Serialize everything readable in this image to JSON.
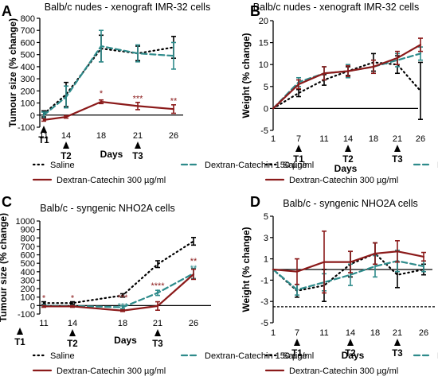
{
  "colors": {
    "saline": "#000000",
    "dex150": "#2e8b8b",
    "dex300": "#8b1a1a"
  },
  "legend": {
    "saline": "Saline",
    "dex150": "Dextran-Catechin 150 µg/ml",
    "dex300": "Dextran-Catechin 300 µg/ml"
  },
  "chart_data": [
    {
      "panel": "A",
      "type": "line",
      "title": "Balb/c nudes - xenograft IMR-32 cells",
      "xlabel": "Days",
      "ylabel": "Tumour size (% change)",
      "x": [
        11,
        14,
        18,
        21,
        26
      ],
      "ylim": [
        -100,
        800
      ],
      "yticks": [
        -100,
        0,
        100,
        200,
        300,
        400,
        500,
        600,
        700,
        800
      ],
      "treatments": [
        {
          "label": "T1",
          "day": 11,
          "x": 11,
          "y": -100
        },
        {
          "label": "T2",
          "day": 14,
          "x": 14,
          "y": -100
        },
        {
          "label": "T3",
          "day": 21,
          "x": 21,
          "y": -100
        }
      ],
      "series": [
        {
          "key": "saline",
          "values": [
            10,
            170,
            550,
            510,
            560
          ],
          "errors": [
            25,
            100,
            110,
            60,
            90
          ]
        },
        {
          "key": "dex150",
          "values": [
            0,
            150,
            570,
            510,
            490
          ],
          "errors": [
            25,
            90,
            130,
            70,
            110
          ]
        },
        {
          "key": "dex300",
          "values": [
            -40,
            -15,
            110,
            75,
            50
          ],
          "errors": [
            10,
            10,
            15,
            30,
            35
          ]
        }
      ],
      "annotations": [
        {
          "text": "*",
          "x": 18,
          "y": 155
        },
        {
          "text": "***",
          "x": 21,
          "y": 115
        },
        {
          "text": "**",
          "x": 26,
          "y": 95
        }
      ]
    },
    {
      "panel": "B",
      "type": "line",
      "title": "Balb/c nudes - xenograft IMR-32 cells",
      "xlabel": "Days",
      "ylabel": "Weight (% change)",
      "x": [
        1,
        7,
        11,
        14,
        18,
        21,
        26
      ],
      "ylim": [
        -5,
        20
      ],
      "yticks": [
        -5,
        0,
        5,
        10,
        15,
        20
      ],
      "treatments": [
        {
          "label": "T1",
          "day": 7,
          "x": 7,
          "y": -5
        },
        {
          "label": "T2",
          "day": 14,
          "x": 14,
          "y": -5
        },
        {
          "label": "T3",
          "day": 21,
          "x": 21,
          "y": -5
        }
      ],
      "series": [
        {
          "key": "saline",
          "values": [
            0,
            3.5,
            6.5,
            8.5,
            10.5,
            10,
            4
          ],
          "errors": [
            0,
            0.8,
            1.2,
            1.0,
            2.0,
            2.0,
            6.5
          ]
        },
        {
          "key": "dex150",
          "values": [
            0,
            6,
            8,
            8.5,
            9.5,
            11,
            12.5
          ],
          "errors": [
            0,
            1.0,
            1.5,
            1.5,
            1.5,
            1.5,
            1.5
          ]
        },
        {
          "key": "dex300",
          "values": [
            0,
            5.5,
            8,
            8.5,
            9.5,
            11.5,
            14.5
          ],
          "errors": [
            0,
            1.0,
            1.5,
            1.2,
            1.5,
            1.5,
            1.5
          ]
        }
      ],
      "annotations": []
    },
    {
      "panel": "C",
      "type": "line",
      "title": "Balb/c - syngenic NHO2A cells",
      "xlabel": "Days",
      "ylabel": "Tumour size (% change)",
      "x": [
        11,
        14,
        18,
        21,
        26
      ],
      "ylim": [
        -100,
        1000
      ],
      "yticks": [
        -100,
        0,
        100,
        200,
        300,
        400,
        500,
        600,
        700,
        800,
        900,
        1000
      ],
      "treatments": [
        {
          "label": "T1",
          "day": 9,
          "x": 9,
          "y": -100
        },
        {
          "label": "T2",
          "day": 14,
          "x": 14,
          "y": -100
        },
        {
          "label": "T3",
          "day": 21,
          "x": 21,
          "y": -100
        }
      ],
      "series": [
        {
          "key": "saline",
          "values": [
            30,
            30,
            120,
            490,
            760
          ],
          "errors": [
            15,
            15,
            20,
            40,
            45
          ]
        },
        {
          "key": "dex150",
          "values": [
            0,
            -5,
            -20,
            150,
            380
          ],
          "errors": [
            10,
            10,
            15,
            30,
            60
          ]
        },
        {
          "key": "dex300",
          "values": [
            -10,
            -10,
            -60,
            -5,
            370
          ],
          "errors": [
            10,
            10,
            10,
            50,
            60
          ]
        }
      ],
      "annotations": [
        {
          "text": "*",
          "x": 11,
          "y": 55,
          "key": "dex300"
        },
        {
          "text": "*",
          "x": 14,
          "y": 55,
          "key": "dex300"
        },
        {
          "text": "***",
          "x": 18,
          "y": 60,
          "key": "dex300"
        },
        {
          "text": "***",
          "x": 18,
          "y": -40,
          "key": "dex150"
        },
        {
          "text": "****",
          "x": 21,
          "y": 200,
          "key": "dex300"
        },
        {
          "text": "*",
          "x": 21,
          "y": 120,
          "key": "dex150"
        },
        {
          "text": "**",
          "x": 26,
          "y": 490,
          "key": "dex300"
        },
        {
          "text": "**",
          "x": 26,
          "y": 410,
          "key": "dex150"
        }
      ]
    },
    {
      "panel": "D",
      "type": "line",
      "title": "Balb/c - syngenic NHO2A cells",
      "xlabel": "Days",
      "ylabel": "Weight (% change)",
      "x": [
        1,
        7,
        11,
        14,
        18,
        21,
        26
      ],
      "ylim": [
        -5,
        5
      ],
      "yticks": [
        -5,
        -3,
        -1,
        1,
        3,
        5
      ],
      "baseline": -3.5,
      "treatments": [
        {
          "label": "T1",
          "day": 7,
          "x": 7,
          "y": -3.5
        },
        {
          "label": "T2",
          "day": 14,
          "x": 14,
          "y": -3.5
        },
        {
          "label": "T3",
          "day": 21,
          "x": 21,
          "y": -3.5
        }
      ],
      "series": [
        {
          "key": "saline",
          "values": [
            0,
            -2,
            -1.5,
            0.5,
            1.5,
            -0.5,
            0
          ],
          "errors": [
            0,
            0.6,
            1.5,
            1.2,
            1.0,
            1.2,
            0.5
          ]
        },
        {
          "key": "dex150",
          "values": [
            0,
            -1.9,
            -1.2,
            -0.5,
            0.3,
            0.8,
            0.3
          ],
          "errors": [
            0,
            0.5,
            0.8,
            1.0,
            1.0,
            1.0,
            0.5
          ]
        },
        {
          "key": "dex300",
          "values": [
            0,
            -0.2,
            0.7,
            0.7,
            1.5,
            1.7,
            1.2
          ],
          "errors": [
            0,
            1.2,
            2.9,
            1.0,
            1.0,
            1.0,
            0.4
          ]
        }
      ],
      "annotations": []
    }
  ]
}
